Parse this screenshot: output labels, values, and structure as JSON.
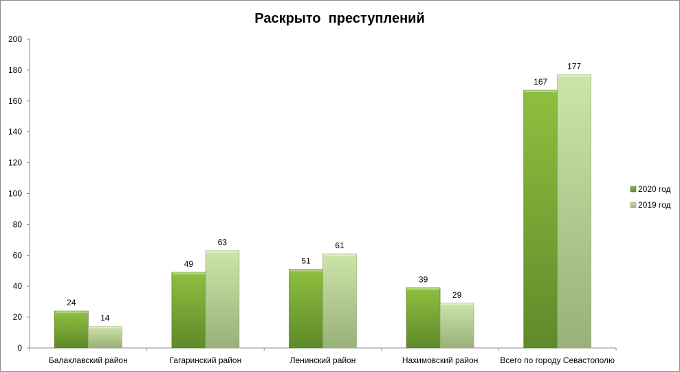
{
  "chart_data": {
    "type": "bar",
    "title": "Раскрыто  преступлений",
    "xlabel": "",
    "ylabel": "",
    "categories": [
      "Балаклавский район",
      "Гагаринский район",
      "Ленинский район",
      "Нахимовский район",
      "Всего по городу Севастополю"
    ],
    "series": [
      {
        "name": "2020 год",
        "values": [
          24,
          49,
          51,
          39,
          167
        ],
        "color": "#7aa832"
      },
      {
        "name": "2019 год",
        "values": [
          14,
          63,
          61,
          29,
          177
        ],
        "color": "#b7d68e"
      }
    ],
    "ylim": [
      0,
      200
    ],
    "yticks": [
      0,
      20,
      40,
      60,
      80,
      100,
      120,
      140,
      160,
      180,
      200
    ],
    "grid": false,
    "legend": "right",
    "data_labels": true
  }
}
